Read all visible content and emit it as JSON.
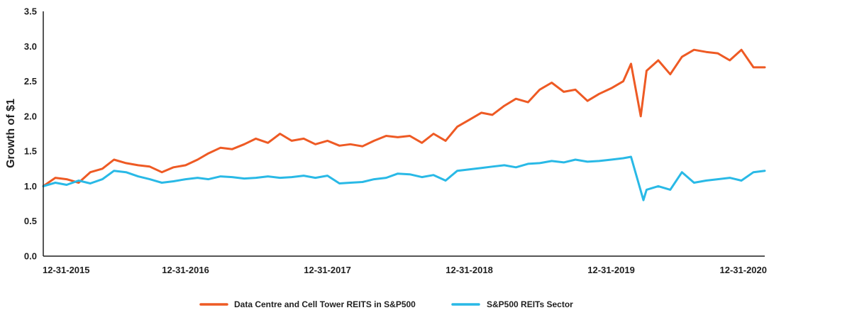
{
  "chart_data": {
    "type": "line",
    "title": "",
    "xlabel": "",
    "ylabel": "Growth of $1",
    "ylim": [
      0,
      3.5
    ],
    "xlim": [
      "2015-12-31",
      "2021-01-29"
    ],
    "yticks": [
      "0.0",
      "0.5",
      "1.0",
      "1.5",
      "2.0",
      "2.5",
      "3.0",
      "3.5"
    ],
    "xticks": [
      "12-31-2015",
      "12-31-2016",
      "12-31-2017",
      "12-31-2018",
      "12-31-2019",
      "12-31-2020"
    ],
    "xtick_dates": [
      "2015-12-31",
      "2016-12-31",
      "2017-12-31",
      "2018-12-31",
      "2019-12-31",
      "2020-12-31"
    ],
    "grid": false,
    "legend_position": "bottom-center",
    "series": [
      {
        "name": "Data Centre and Cell Tower REITS in S&P500",
        "color": "#ee5a24",
        "x": [
          "2015-12-31",
          "2016-01-31",
          "2016-02-29",
          "2016-03-31",
          "2016-04-30",
          "2016-05-31",
          "2016-06-30",
          "2016-07-31",
          "2016-08-31",
          "2016-09-30",
          "2016-10-31",
          "2016-11-30",
          "2016-12-31",
          "2017-01-31",
          "2017-02-28",
          "2017-03-31",
          "2017-04-30",
          "2017-05-31",
          "2017-06-30",
          "2017-07-31",
          "2017-08-31",
          "2017-09-30",
          "2017-10-31",
          "2017-11-30",
          "2017-12-31",
          "2018-01-31",
          "2018-02-28",
          "2018-03-31",
          "2018-04-30",
          "2018-05-31",
          "2018-06-30",
          "2018-07-31",
          "2018-08-31",
          "2018-09-30",
          "2018-10-31",
          "2018-11-30",
          "2018-12-31",
          "2019-01-31",
          "2019-02-28",
          "2019-03-31",
          "2019-04-30",
          "2019-05-31",
          "2019-06-30",
          "2019-07-31",
          "2019-08-31",
          "2019-09-30",
          "2019-10-31",
          "2019-11-30",
          "2019-12-31",
          "2020-01-31",
          "2020-02-20",
          "2020-03-16",
          "2020-03-31",
          "2020-04-30",
          "2020-05-31",
          "2020-06-30",
          "2020-07-31",
          "2020-08-31",
          "2020-09-30",
          "2020-10-31",
          "2020-11-30",
          "2020-12-31",
          "2021-01-29"
        ],
        "values": [
          1.0,
          1.12,
          1.1,
          1.05,
          1.2,
          1.25,
          1.38,
          1.33,
          1.3,
          1.28,
          1.2,
          1.27,
          1.3,
          1.38,
          1.47,
          1.55,
          1.53,
          1.6,
          1.68,
          1.62,
          1.75,
          1.65,
          1.68,
          1.6,
          1.65,
          1.58,
          1.6,
          1.57,
          1.65,
          1.72,
          1.7,
          1.72,
          1.62,
          1.75,
          1.65,
          1.85,
          1.95,
          2.05,
          2.02,
          2.15,
          2.25,
          2.2,
          2.38,
          2.48,
          2.35,
          2.38,
          2.22,
          2.32,
          2.4,
          2.5,
          2.75,
          2.0,
          2.65,
          2.8,
          2.6,
          2.85,
          2.95,
          2.92,
          2.9,
          2.8,
          2.95,
          2.7,
          2.7
        ]
      },
      {
        "name": "S&P500 REITs Sector",
        "color": "#29b9e6",
        "x": [
          "2015-12-31",
          "2016-01-31",
          "2016-02-29",
          "2016-03-31",
          "2016-04-30",
          "2016-05-31",
          "2016-06-30",
          "2016-07-31",
          "2016-08-31",
          "2016-09-30",
          "2016-10-31",
          "2016-11-30",
          "2016-12-31",
          "2017-01-31",
          "2017-02-28",
          "2017-03-31",
          "2017-04-30",
          "2017-05-31",
          "2017-06-30",
          "2017-07-31",
          "2017-08-31",
          "2017-09-30",
          "2017-10-31",
          "2017-11-30",
          "2017-12-31",
          "2018-01-31",
          "2018-02-28",
          "2018-03-31",
          "2018-04-30",
          "2018-05-31",
          "2018-06-30",
          "2018-07-31",
          "2018-08-31",
          "2018-09-30",
          "2018-10-31",
          "2018-11-30",
          "2018-12-31",
          "2019-01-31",
          "2019-02-28",
          "2019-03-31",
          "2019-04-30",
          "2019-05-31",
          "2019-06-30",
          "2019-07-31",
          "2019-08-31",
          "2019-09-30",
          "2019-10-31",
          "2019-11-30",
          "2019-12-31",
          "2020-01-31",
          "2020-02-20",
          "2020-03-23",
          "2020-03-31",
          "2020-04-30",
          "2020-05-31",
          "2020-06-30",
          "2020-07-31",
          "2020-08-31",
          "2020-09-30",
          "2020-10-31",
          "2020-11-30",
          "2020-12-31",
          "2021-01-29"
        ],
        "values": [
          1.0,
          1.05,
          1.02,
          1.08,
          1.04,
          1.1,
          1.22,
          1.2,
          1.14,
          1.1,
          1.05,
          1.07,
          1.1,
          1.12,
          1.1,
          1.14,
          1.13,
          1.11,
          1.12,
          1.14,
          1.12,
          1.13,
          1.15,
          1.12,
          1.15,
          1.04,
          1.05,
          1.06,
          1.1,
          1.12,
          1.18,
          1.17,
          1.13,
          1.16,
          1.08,
          1.22,
          1.24,
          1.26,
          1.28,
          1.3,
          1.27,
          1.32,
          1.33,
          1.36,
          1.34,
          1.38,
          1.35,
          1.36,
          1.38,
          1.4,
          1.42,
          0.8,
          0.95,
          1.0,
          0.95,
          1.2,
          1.05,
          1.08,
          1.1,
          1.12,
          1.08,
          1.2,
          1.22
        ]
      }
    ]
  }
}
